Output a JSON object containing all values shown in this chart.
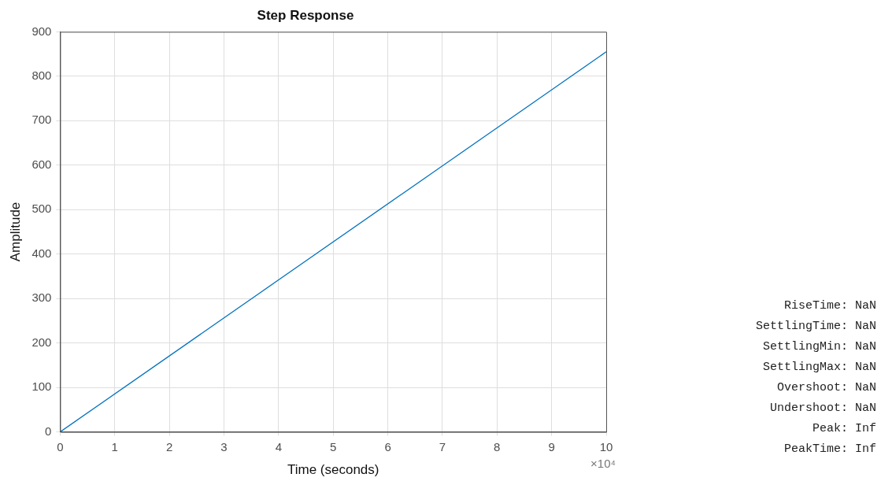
{
  "chart_data": {
    "type": "line",
    "title": "Step Response",
    "xlabel": "Time (seconds)",
    "ylabel": "Amplitude",
    "x": [
      0,
      10
    ],
    "series": [
      {
        "color": "#0072bd",
        "values": [
          0,
          855
        ]
      }
    ],
    "xlim": [
      0,
      10
    ],
    "xticks": [
      0,
      1,
      2,
      3,
      4,
      5,
      6,
      7,
      8,
      9,
      10
    ],
    "ylim": [
      0,
      900
    ],
    "yticks": [
      0,
      100,
      200,
      300,
      400,
      500,
      600,
      700,
      800,
      900
    ],
    "grid": true,
    "legend": false,
    "marker": "none",
    "line_style": "solid",
    "annotations": [
      "×10⁴",
      "RiseTime: NaN",
      "SettlingTime: NaN",
      "SettlingMin: NaN",
      "SettlingMax: NaN",
      "Overshoot: NaN",
      "Undershoot: NaN",
      "Peak: Inf",
      "PeakTime: Inf"
    ]
  }
}
